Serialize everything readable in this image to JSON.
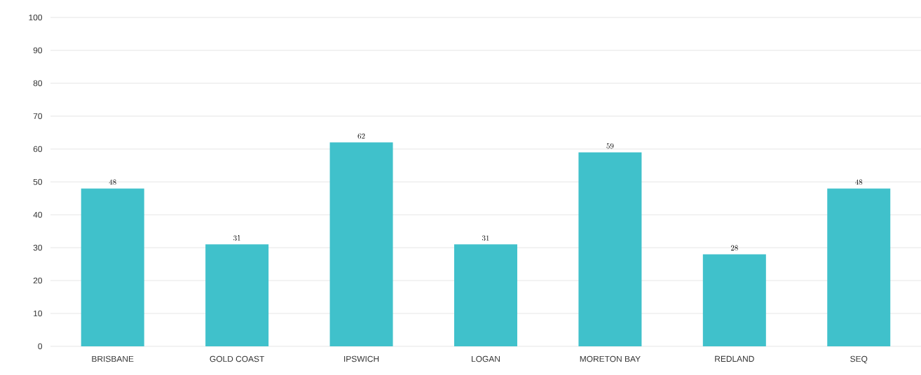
{
  "chart_data": {
    "type": "bar",
    "categories": [
      "BRISBANE",
      "GOLD COAST",
      "IPSWICH",
      "LOGAN",
      "MORETON BAY",
      "REDLAND",
      "SEQ"
    ],
    "values": [
      48,
      31,
      62,
      31,
      59,
      28,
      48
    ],
    "color": "#40c1cb",
    "ylim": [
      0,
      100
    ],
    "yticks": [
      0,
      10,
      20,
      30,
      40,
      50,
      60,
      70,
      80,
      90,
      100
    ],
    "grid": "y",
    "data_labels": true
  }
}
